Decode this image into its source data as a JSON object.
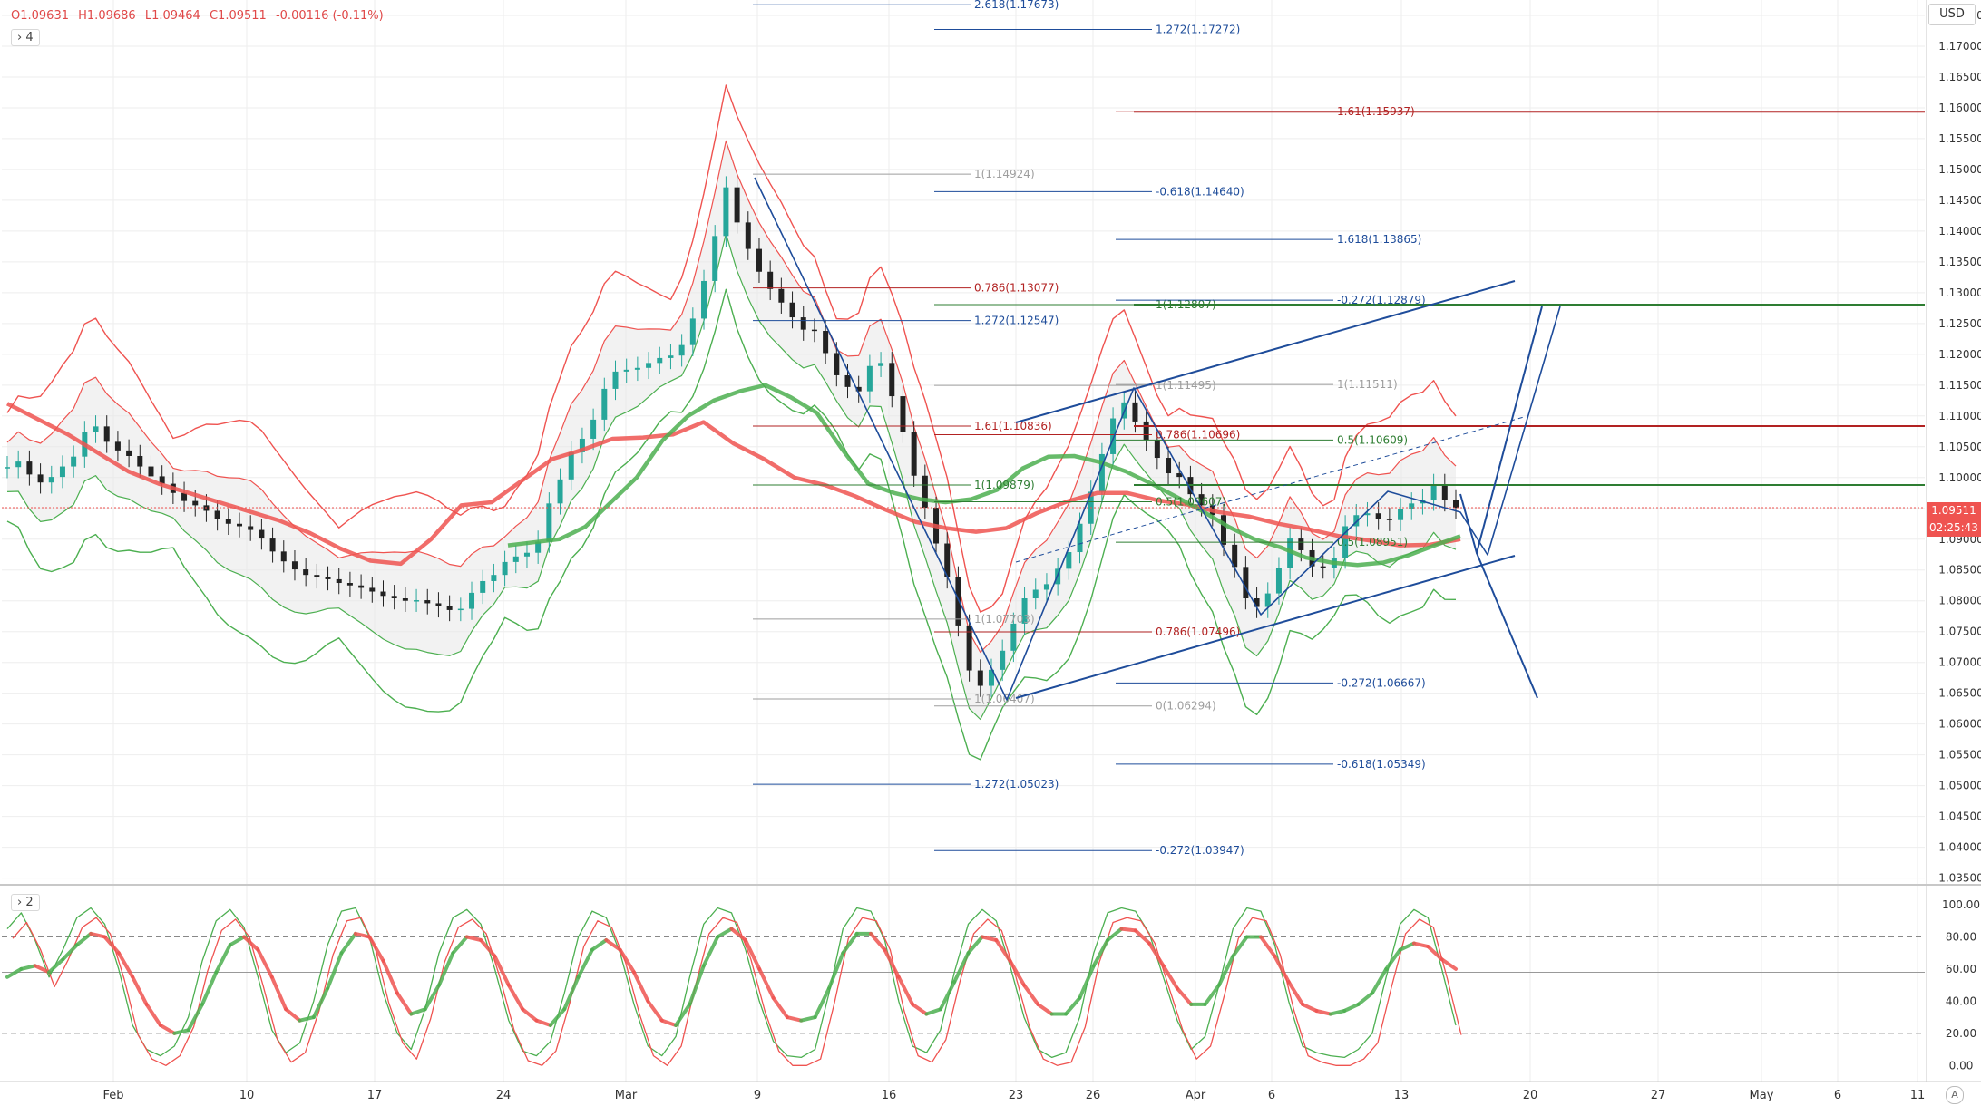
{
  "header": {
    "ohlc": {
      "o": "O1.09631",
      "h": "H1.09686",
      "l": "L1.09464",
      "c": "C1.09511",
      "chg": "-0.00116 (-0.11%)"
    },
    "main_badge": "4",
    "osc_badge": "2",
    "currency": "USD",
    "auto_label": "A"
  },
  "price_tag": {
    "price": "1.09511",
    "countdown": "02:25:43"
  },
  "colors": {
    "up": "#26a69a",
    "down": "#ef5350",
    "ma_red": "#ef5350",
    "ma_green": "#4caf50",
    "blue": "#1e4c9a",
    "dark_red": "#b22222",
    "dark_green": "#2e7d32"
  },
  "chart_data": {
    "type": "line",
    "price_axis": {
      "min": 1.035,
      "max": 1.175,
      "ticks": [
        "1.17500",
        "1.17000",
        "1.16500",
        "1.16000",
        "1.15500",
        "1.15000",
        "1.14500",
        "1.14000",
        "1.13500",
        "1.13000",
        "1.12500",
        "1.12000",
        "1.11500",
        "1.11000",
        "1.10500",
        "1.10000",
        "1.09500",
        "1.09000",
        "1.08500",
        "1.08000",
        "1.07500",
        "1.07000",
        "1.06500",
        "1.06000",
        "1.05500",
        "1.05000",
        "1.04500",
        "1.04000",
        "1.03500"
      ]
    },
    "time_axis": [
      "Feb",
      "10",
      "17",
      "24",
      "Mar",
      "9",
      "16",
      "23",
      "26",
      "Apr",
      "6",
      "13",
      "20",
      "27",
      "May",
      "6",
      "11"
    ],
    "osc_axis": {
      "min": 0,
      "max": 100,
      "ticks": [
        "100.00",
        "80.00",
        "60.00",
        "40.00",
        "20.00",
        "0.00"
      ]
    },
    "price_close": [
      1.1017,
      1.1026,
      1.1005,
      1.0992,
      1.1001,
      1.1018,
      1.1034,
      1.1074,
      1.1083,
      1.1058,
      1.1044,
      1.1035,
      1.1018,
      1.1002,
      1.099,
      1.0975,
      1.0962,
      1.0955,
      1.0946,
      1.0932,
      1.0925,
      1.0921,
      1.0915,
      1.0901,
      1.088,
      1.0864,
      1.0851,
      1.0842,
      1.0838,
      1.0835,
      1.0829,
      1.0825,
      1.0821,
      1.0815,
      1.0808,
      1.0804,
      1.08,
      1.0801,
      1.0796,
      1.0791,
      1.0785,
      1.0787,
      1.0813,
      1.0832,
      1.0842,
      1.0863,
      1.0872,
      1.0878,
      1.0896,
      1.0958,
      1.0997,
      1.1041,
      1.1063,
      1.1094,
      1.1144,
      1.1172,
      1.1175,
      1.1178,
      1.1186,
      1.1194,
      1.1198,
      1.1215,
      1.1258,
      1.1319,
      1.1392,
      1.1471,
      1.1414,
      1.1371,
      1.1334,
      1.1306,
      1.1284,
      1.126,
      1.124,
      1.1238,
      1.1202,
      1.1166,
      1.1147,
      1.114,
      1.1181,
      1.1186,
      1.1132,
      1.1074,
      1.1003,
      1.0951,
      1.0893,
      1.0838,
      1.076,
      1.0687,
      1.0662,
      1.0688,
      1.0719,
      1.0763,
      1.0804,
      1.0818,
      1.0827,
      1.0852,
      1.0879,
      1.0925,
      1.0977,
      1.1038,
      1.1096,
      1.1122,
      1.1091,
      1.1061,
      1.1032,
      1.1007,
      1.1001,
      1.0973,
      1.0955,
      1.0939,
      1.0891,
      1.0855,
      1.0804,
      1.079,
      1.0812,
      1.0853,
      1.0901,
      1.0882,
      1.0856,
      1.0854,
      1.087,
      1.0921,
      1.0939,
      1.0942,
      1.0933,
      1.0931,
      1.0949,
      1.0958,
      1.0964,
      1.0988,
      1.0963,
      1.0951
    ],
    "ma_red": [
      1.112,
      1.1095,
      1.107,
      1.104,
      1.101,
      1.099,
      1.0975,
      1.096,
      1.0945,
      1.093,
      1.091,
      1.0885,
      1.0865,
      1.086,
      1.09,
      1.0955,
      1.096,
      1.0995,
      1.103,
      1.1045,
      1.1063,
      1.1065,
      1.107,
      1.109,
      1.1055,
      1.103,
      1.1,
      1.0988,
      1.097,
      1.0948,
      1.0928,
      1.0918,
      1.0912,
      1.0918,
      1.0942,
      1.0961,
      1.0975,
      1.0975,
      1.0963,
      1.0956,
      1.0944,
      1.0937,
      1.0925,
      1.0916,
      1.0905,
      1.0898,
      1.089,
      1.0891,
      1.09
    ],
    "ma_green": [
      1.089,
      1.0895,
      1.09,
      1.092,
      1.096,
      1.1,
      1.106,
      1.11,
      1.1125,
      1.114,
      1.115,
      1.113,
      1.1105,
      1.1045,
      1.099,
      1.0975,
      1.0965,
      1.096,
      1.0965,
      1.098,
      1.1015,
      1.1034,
      1.1035,
      1.1025,
      1.101,
      1.099,
      1.0968,
      1.0945,
      1.092,
      1.09,
      1.0887,
      1.087,
      1.0862,
      1.0858,
      1.0862,
      1.0874,
      1.089,
      1.0905
    ],
    "fib_labels": [
      {
        "text": "2.618(1.17673)",
        "price": 1.17673,
        "color": "blue"
      },
      {
        "text": "1.272(1.17272)",
        "price": 1.17272,
        "color": "blue"
      },
      {
        "text": "1.61(1.15937)",
        "price": 1.15937,
        "color": "red"
      },
      {
        "text": "1(1.14924)",
        "price": 1.14924,
        "color": "grey"
      },
      {
        "text": "-0.618(1.14640)",
        "price": 1.1464,
        "color": "blue"
      },
      {
        "text": "1.618(1.13865)",
        "price": 1.13865,
        "color": "blue"
      },
      {
        "text": "0.786(1.13077)",
        "price": 1.13077,
        "color": "red"
      },
      {
        "text": "1(1.12807)",
        "price": 1.12807,
        "color": "green"
      },
      {
        "text": "-0.272(1.12879)",
        "price": 1.12879,
        "color": "blue"
      },
      {
        "text": "1.272(1.12547)",
        "price": 1.12547,
        "color": "blue"
      },
      {
        "text": "1(1.11495)",
        "price": 1.11495,
        "color": "grey"
      },
      {
        "text": "1(1.11511)",
        "price": 1.11511,
        "color": "grey"
      },
      {
        "text": "1.61(1.10836)",
        "price": 1.10836,
        "color": "red"
      },
      {
        "text": "0.786(1.10696)",
        "price": 1.10696,
        "color": "red"
      },
      {
        "text": "0.5(1.10609)",
        "price": 1.10609,
        "color": "green"
      },
      {
        "text": "1(1.09879)",
        "price": 1.09879,
        "color": "green"
      },
      {
        "text": "0.5(1.09607)",
        "price": 1.09607,
        "color": "green"
      },
      {
        "text": "0.5(1.08951)",
        "price": 1.08951,
        "color": "green"
      },
      {
        "text": "1(1.07703)",
        "price": 1.07703,
        "color": "grey"
      },
      {
        "text": "0.786(1.07496)",
        "price": 1.07496,
        "color": "red"
      },
      {
        "text": "-0.272(1.06667)",
        "price": 1.06667,
        "color": "blue"
      },
      {
        "text": "1(1.06407)",
        "price": 1.06407,
        "color": "grey"
      },
      {
        "text": "0(1.06294)",
        "price": 1.06294,
        "color": "grey"
      },
      {
        "text": "-0.618(1.05349)",
        "price": 1.05349,
        "color": "blue"
      },
      {
        "text": "1.272(1.05023)",
        "price": 1.05023,
        "color": "blue"
      },
      {
        "text": "-0.272(1.03947)",
        "price": 1.03947,
        "color": "blue"
      }
    ],
    "horizontal_levels": [
      {
        "price": 1.15937,
        "color": "dark_red"
      },
      {
        "price": 1.12807,
        "color": "dark_green"
      },
      {
        "price": 1.10836,
        "color": "dark_red"
      },
      {
        "price": 1.09879,
        "color": "dark_green"
      }
    ],
    "osc_fast": [
      85,
      95,
      78,
      55,
      72,
      92,
      98,
      88,
      60,
      25,
      10,
      6,
      12,
      30,
      65,
      90,
      97,
      86,
      55,
      22,
      8,
      14,
      40,
      75,
      96,
      98,
      80,
      45,
      20,
      10,
      35,
      70,
      92,
      97,
      88,
      60,
      28,
      9,
      6,
      15,
      45,
      80,
      96,
      92,
      70,
      38,
      12,
      6,
      18,
      55,
      88,
      98,
      95,
      72,
      40,
      15,
      6,
      5,
      10,
      45,
      85,
      98,
      96,
      78,
      40,
      12,
      8,
      22,
      58,
      88,
      97,
      90,
      62,
      30,
      10,
      5,
      8,
      30,
      70,
      95,
      98,
      96,
      82,
      55,
      28,
      10,
      18,
      50,
      85,
      98,
      96,
      75,
      40,
      12,
      8,
      6,
      5,
      10,
      20,
      55,
      88,
      97,
      92,
      60,
      25
    ],
    "osc_slow": [
      55,
      60,
      62,
      58,
      66,
      75,
      82,
      80,
      70,
      55,
      38,
      25,
      20,
      22,
      38,
      58,
      75,
      80,
      72,
      55,
      35,
      28,
      30,
      48,
      70,
      82,
      80,
      65,
      45,
      32,
      35,
      50,
      70,
      80,
      78,
      68,
      50,
      35,
      28,
      25,
      35,
      55,
      72,
      78,
      72,
      58,
      40,
      28,
      25,
      38,
      62,
      80,
      85,
      78,
      60,
      42,
      30,
      28,
      30,
      48,
      70,
      82,
      82,
      72,
      55,
      38,
      32,
      35,
      52,
      70,
      80,
      78,
      65,
      50,
      38,
      32,
      32,
      42,
      62,
      78,
      85,
      84,
      76,
      62,
      48,
      38,
      38,
      50,
      68,
      80,
      80,
      68,
      52,
      38,
      34,
      32,
      34,
      38,
      45,
      60,
      72,
      76,
      74,
      66,
      60
    ]
  }
}
